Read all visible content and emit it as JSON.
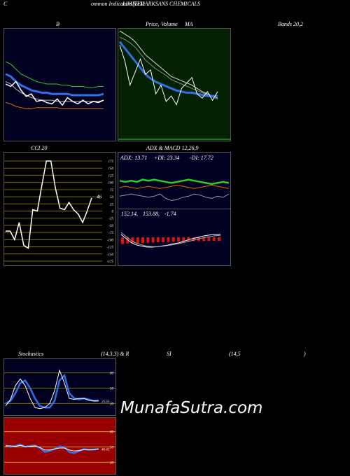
{
  "header": {
    "c_label": "C",
    "overlap_a": "ommon Indicators for",
    "overlap_b": "LIMITED",
    "overlap_c": "MARKSANS CHEMICALS",
    "overlap_d": "Volume",
    "b_label": "B",
    "price_label": "Price,",
    "ma_label": "MA",
    "bands_label": "Bands 20,2"
  },
  "row2": {
    "cci_label": "CCI 20",
    "adx_label": "ADX  & MACD 12,26,9"
  },
  "adx_readout": {
    "adx": "ADX: 13.71",
    "plus_di": "+DI: 23.34",
    "minus_di": "-DI: 17.72"
  },
  "macd_readout": {
    "a": "152.14,",
    "b": "153.88,",
    "c": "-1.74"
  },
  "stoch_header": {
    "left": "Stochastics",
    "mid": "(14,3,3) & R",
    "si": "SI",
    "params": "(14,5",
    "close": ")"
  },
  "watermark": "MunafaSutra.com",
  "colors": {
    "bg": "#000000",
    "navy": "#000020",
    "price_panel": "#002000",
    "grid_green": "#1e6e1e",
    "cci_grid": "#7a6a00",
    "rsi_panel": "#990000",
    "blue": "#2f6fe8",
    "green": "#2ecc2e",
    "orange": "#e06a00"
  },
  "chart_data": [
    {
      "type": "line",
      "title": "B",
      "note": "Bollinger bands panel",
      "series": [
        {
          "values": [
            78,
            76,
            72,
            68,
            66,
            64,
            62,
            61,
            60,
            60,
            60,
            59,
            59,
            58,
            58,
            58,
            57,
            57,
            58,
            58
          ]
        },
        {
          "values": [
            68,
            66,
            62,
            59,
            57,
            55,
            54,
            53,
            53,
            52,
            52,
            52,
            52,
            51,
            51,
            51,
            51,
            51,
            51,
            52
          ]
        },
        {
          "values": [
            62,
            60,
            56,
            53,
            51,
            49,
            48,
            47,
            47,
            47,
            46,
            46,
            46,
            46,
            46,
            46,
            46,
            46,
            46,
            47
          ]
        },
        {
          "values": [
            60,
            58,
            62,
            55,
            50,
            52,
            46,
            47,
            45,
            44,
            48,
            43,
            49,
            46,
            44,
            47,
            44,
            46,
            45,
            47
          ]
        },
        {
          "values": [
            45,
            44,
            42,
            41,
            40,
            40,
            41,
            41,
            41,
            41,
            41,
            40,
            40,
            40,
            40,
            40,
            40,
            40,
            40,
            40
          ]
        }
      ]
    },
    {
      "type": "line",
      "title": "Price, MA",
      "series": [
        {
          "values": [
            98,
            95,
            92,
            88,
            82,
            76,
            72,
            68,
            64,
            60,
            56,
            54,
            52,
            50,
            48,
            45,
            42,
            40,
            38,
            36
          ]
        },
        {
          "values": [
            92,
            90,
            87,
            83,
            77,
            71,
            67,
            63,
            60,
            57,
            53,
            51,
            49,
            47,
            45,
            43,
            41,
            39,
            37,
            35
          ]
        },
        {
          "values": [
            88,
            82,
            76,
            70,
            64,
            58,
            54,
            51,
            49,
            47,
            45,
            43,
            42,
            41,
            41,
            40,
            39,
            38,
            38,
            38
          ]
        },
        {
          "values": [
            85,
            70,
            48,
            60,
            72,
            58,
            62,
            40,
            48,
            33,
            38,
            30,
            45,
            50,
            55,
            40,
            36,
            42,
            34,
            42
          ]
        }
      ]
    },
    {
      "type": "line",
      "title": "CCI 20",
      "ylim": [
        -175,
        175
      ],
      "yticks": [
        175,
        150,
        125,
        100,
        75,
        50,
        25,
        0,
        -25,
        -50,
        -75,
        -100,
        -125,
        -150,
        -175
      ],
      "ytick_labels": [
        "175",
        "150",
        "125",
        "100",
        "75",
        "50",
        "25",
        "0",
        "-25",
        "-50",
        "-75",
        "-100",
        "-125",
        "-150",
        "-175"
      ],
      "last_value_label": "46",
      "series": [
        {
          "values": [
            -70,
            -70,
            -100,
            -40,
            -120,
            -130,
            5,
            0,
            90,
            175,
            175,
            80,
            10,
            5,
            30,
            5,
            -10,
            -40,
            0,
            46
          ]
        }
      ]
    },
    {
      "type": "line",
      "title": "ADX",
      "series": [
        {
          "values": [
            24,
            23,
            24,
            23,
            25,
            24,
            25,
            24,
            23,
            22,
            23,
            24,
            25,
            24,
            23,
            22,
            21,
            22,
            23,
            22
          ]
        },
        {
          "values": [
            18,
            19,
            18,
            17,
            18,
            19,
            18,
            17,
            18,
            19,
            20,
            19,
            18,
            17,
            18,
            19,
            20,
            19,
            18,
            17
          ]
        },
        {
          "values": [
            10,
            11,
            12,
            11,
            10,
            9,
            10,
            12,
            8,
            6,
            7,
            9,
            10,
            12,
            11,
            9,
            8,
            10,
            9,
            12
          ]
        }
      ]
    },
    {
      "type": "bar",
      "title": "MACD",
      "series": [
        {
          "values": [
            -3.2,
            -3.0,
            -2.9,
            -2.8,
            -2.7,
            -2.6,
            -2.5,
            -2.4,
            -2.3,
            -2.2,
            -2.1,
            -2.0,
            -1.9,
            -1.9,
            -1.8,
            -1.8,
            -1.8,
            -1.7,
            -1.7,
            -1.74
          ]
        }
      ]
    },
    {
      "type": "line",
      "title": "Stochastics (14,3,3)",
      "yticks": [
        80,
        50,
        20
      ],
      "ytick_labels": [
        "80",
        "50",
        "20"
      ],
      "last_value_label": "25.55",
      "series": [
        {
          "values": [
            20,
            25,
            40,
            60,
            65,
            50,
            30,
            15,
            12,
            12,
            25,
            65,
            75,
            40,
            30,
            28,
            30,
            28,
            25,
            26
          ]
        },
        {
          "values": [
            15,
            28,
            55,
            68,
            55,
            30,
            12,
            10,
            12,
            20,
            45,
            85,
            60,
            30,
            28,
            30,
            30,
            26,
            25,
            25
          ]
        }
      ]
    },
    {
      "type": "line",
      "title": "RSI (14,5)",
      "yticks": [
        80,
        50,
        20
      ],
      "ytick_labels": [
        "80",
        "50",
        "20"
      ],
      "last_value_label": "46.42",
      "series": [
        {
          "values": [
            53,
            50,
            52,
            55,
            50,
            52,
            53,
            48,
            40,
            42,
            46,
            51,
            50,
            40,
            38,
            42,
            46,
            44,
            45,
            46
          ]
        },
        {
          "values": [
            52,
            52,
            51,
            53,
            51,
            51,
            52,
            49,
            44,
            44,
            46,
            48,
            48,
            44,
            42,
            43,
            45,
            45,
            45,
            46
          ]
        }
      ]
    }
  ]
}
